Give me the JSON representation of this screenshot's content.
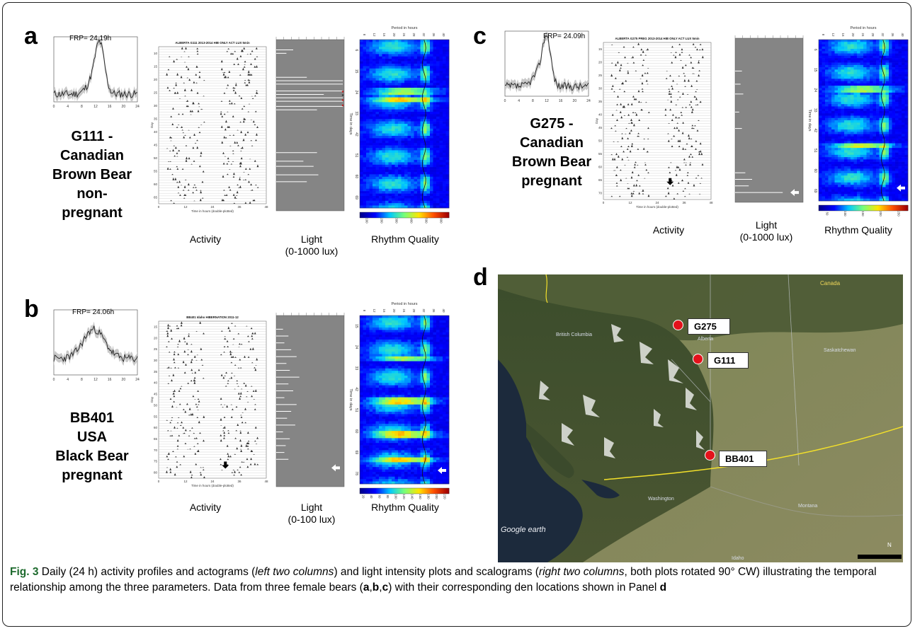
{
  "panels": {
    "a": {
      "letter": "a",
      "frp": "FRP= 24.19h",
      "bear": [
        "G111 -",
        "Canadian",
        "Brown Bear",
        "non-",
        "pregnant"
      ],
      "actogram_title": "ALBERTA G111 2013-2014 HIB ONLY ACT LUX 5min",
      "actogram_xlabel": "Time in hours (double-plotted)",
      "actogram_ylabel": "Day",
      "actogram_yticks": [
        "10",
        "15",
        "20",
        "25",
        "30",
        "35",
        "40",
        "45",
        "50",
        "55",
        "60",
        "65"
      ],
      "actogram_xticks": [
        "0",
        "12",
        "24",
        "36",
        "48"
      ],
      "scalo_title": "Period in hours",
      "scalo_ylabel": "Time in days",
      "scalo_ticks": [
        "6",
        "15",
        "24",
        "33",
        "42",
        "51",
        "60",
        "69"
      ],
      "colorbar": [
        "100",
        "200",
        "300",
        "400",
        "500",
        "600"
      ],
      "activity_label": "Activity",
      "light_label": [
        "Light",
        "(0-1000 lux)"
      ],
      "rhythm_label": "Rhythm Quality"
    },
    "b": {
      "letter": "b",
      "frp": "FRP= 24.06h",
      "bear": [
        "BB401",
        "USA",
        "Black Bear",
        "pregnant"
      ],
      "actogram_title": "BB401 Idaho HIBERNATION 2011-12",
      "actogram_xlabel": "Time in hours (double-plotted)",
      "actogram_ylabel": "Day",
      "actogram_yticks": [
        "15",
        "20",
        "25",
        "30",
        "35",
        "40",
        "45",
        "50",
        "55",
        "60",
        "65",
        "70",
        "75",
        "80"
      ],
      "actogram_xticks": [
        "0",
        "12",
        "24",
        "36",
        "48"
      ],
      "scalo_title": "Period in hours",
      "scalo_ylabel": "Time in days",
      "scalo_ticks": [
        "15",
        "24",
        "33",
        "42",
        "51",
        "60",
        "69",
        "78"
      ],
      "colorbar": [
        "20",
        "40",
        "60",
        "80",
        "100",
        "120",
        "140",
        "160",
        "180",
        "200",
        "220"
      ],
      "activity_label": "Activity",
      "light_label": [
        "Light",
        "(0-100 lux)"
      ],
      "rhythm_label": "Rhythm Quality"
    },
    "c": {
      "letter": "c",
      "frp": "FRP= 24.09h",
      "bear": [
        "G275 -",
        "Canadian",
        "Brown Bear",
        "pregnant"
      ],
      "actogram_title": "ALBERTA G275 PREG 2013-2014 HIB ONLY ACT LUX 5min",
      "actogram_xlabel": "Time in hours (double-plotted)",
      "actogram_ylabel": "Day",
      "actogram_yticks": [
        "15",
        "20",
        "25",
        "30",
        "35",
        "40",
        "45",
        "50",
        "55",
        "60",
        "65",
        "70"
      ],
      "actogram_xticks": [
        "0",
        "12",
        "24",
        "36",
        "48"
      ],
      "scalo_title": "Period in hours",
      "scalo_ylabel": "Time in days",
      "scalo_ticks": [
        "6",
        "15",
        "24",
        "33",
        "42",
        "51",
        "60",
        "69"
      ],
      "colorbar": [
        "50",
        "100",
        "150",
        "200",
        "250"
      ],
      "activity_label": "Activity",
      "light_label": [
        "Light",
        "(0-1000 lux)"
      ],
      "rhythm_label": "Rhythm Quality"
    },
    "d": {
      "letter": "d",
      "labels": {
        "g275": "G275",
        "g111": "G111",
        "bb401": "BB401"
      },
      "place_names": {
        "canada": "Canada",
        "bc": "British Columbia",
        "alberta": "Alberta",
        "sask": "Saskatchewan",
        "washington": "Washington",
        "montana": "Montana",
        "idaho": "Idaho"
      },
      "google_logo": "Google earth",
      "north": "N"
    }
  },
  "period_ticks": [
    "8",
    "12",
    "16",
    "20",
    "24",
    "28",
    "32",
    "36",
    "40"
  ],
  "profile_xticks": [
    "0",
    "4",
    "8",
    "12",
    "16",
    "20",
    "24"
  ],
  "caption": {
    "fig": "Fig. 3",
    "t1": " Daily (24 h) activity profiles and actograms (",
    "i1": "left two columns",
    "t2": ") and light intensity plots and scalograms (",
    "i2": "right two columns",
    "t3": ", both plots rotated 90° CW) illustrating the temporal relationship among the three parameters. Data from three female bears (",
    "b1": "a",
    "t4": ",",
    "b2": "b",
    "t5": ",",
    "b3": "c",
    "t6": ") with their corresponding den locations shown in Panel ",
    "b4": "d"
  }
}
